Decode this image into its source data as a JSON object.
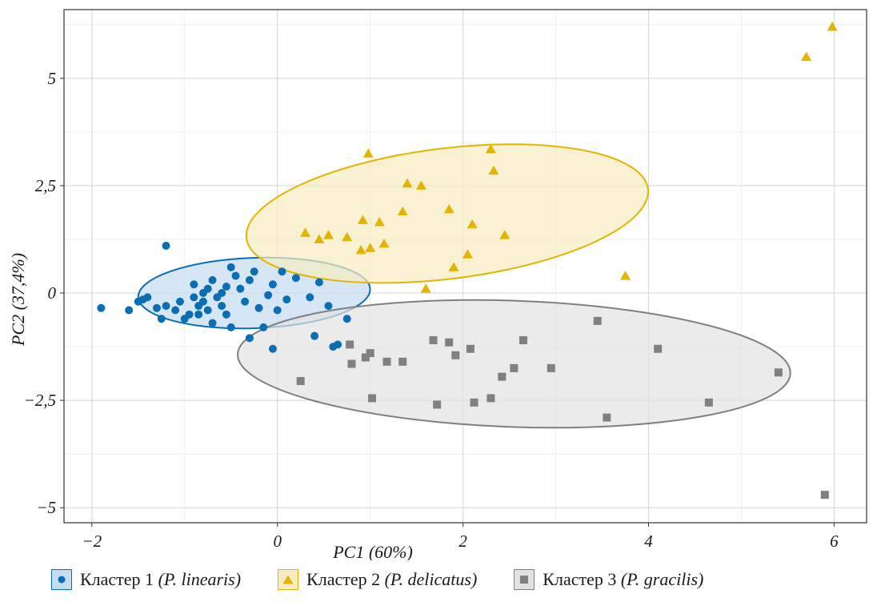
{
  "chart_data": {
    "type": "scatter",
    "xlabel": "PC1 (60%)",
    "ylabel": "PC2 (37,4%)",
    "xlim": [
      -2.3,
      6.35
    ],
    "ylim": [
      -5.35,
      6.6
    ],
    "x_ticks": [
      {
        "value": -2,
        "label": "−2"
      },
      {
        "value": 0,
        "label": "0"
      },
      {
        "value": 2,
        "label": "2"
      },
      {
        "value": 4,
        "label": "4"
      },
      {
        "value": 6,
        "label": "6"
      }
    ],
    "y_ticks": [
      {
        "value": -5,
        "label": "−5"
      },
      {
        "value": -2.5,
        "label": "−2,5"
      },
      {
        "value": 0,
        "label": "0"
      },
      {
        "value": 2.5,
        "label": "2,5"
      },
      {
        "value": 5,
        "label": "5"
      }
    ],
    "grid": true,
    "legend_position": "bottom",
    "series": [
      {
        "name": "Кластер 1",
        "name_italic": "(P. linearis)",
        "marker": "circle",
        "color": "#0a6eb4",
        "fill": "#c6dcef",
        "ellipse": {
          "cx": -0.25,
          "cy": 0.0,
          "rx": 1.25,
          "ry": 0.82,
          "angle_deg": 2
        },
        "points": [
          [
            -1.9,
            -0.35
          ],
          [
            -1.6,
            -0.4
          ],
          [
            -1.5,
            -0.2
          ],
          [
            -1.45,
            -0.15
          ],
          [
            -1.4,
            -0.1
          ],
          [
            -1.3,
            -0.35
          ],
          [
            -1.25,
            -0.6
          ],
          [
            -1.2,
            -0.3
          ],
          [
            -1.2,
            1.1
          ],
          [
            -1.1,
            -0.4
          ],
          [
            -1.05,
            -0.2
          ],
          [
            -1.0,
            -0.6
          ],
          [
            -0.95,
            -0.5
          ],
          [
            -0.9,
            0.2
          ],
          [
            -0.9,
            -0.1
          ],
          [
            -0.85,
            -0.3
          ],
          [
            -0.85,
            -0.5
          ],
          [
            -0.8,
            -0.2
          ],
          [
            -0.8,
            0.0
          ],
          [
            -0.75,
            0.1
          ],
          [
            -0.75,
            -0.4
          ],
          [
            -0.7,
            -0.7
          ],
          [
            -0.7,
            0.3
          ],
          [
            -0.65,
            -0.1
          ],
          [
            -0.6,
            -0.3
          ],
          [
            -0.6,
            0.0
          ],
          [
            -0.55,
            -0.5
          ],
          [
            -0.55,
            0.15
          ],
          [
            -0.5,
            -0.8
          ],
          [
            -0.5,
            0.6
          ],
          [
            -0.45,
            0.4
          ],
          [
            -0.4,
            0.1
          ],
          [
            -0.35,
            -0.2
          ],
          [
            -0.3,
            -1.05
          ],
          [
            -0.3,
            0.3
          ],
          [
            -0.25,
            0.5
          ],
          [
            -0.2,
            -0.35
          ],
          [
            -0.15,
            -0.8
          ],
          [
            -0.1,
            -0.05
          ],
          [
            -0.05,
            -1.3
          ],
          [
            -0.05,
            0.2
          ],
          [
            0.0,
            -0.4
          ],
          [
            0.05,
            0.5
          ],
          [
            0.1,
            -0.15
          ],
          [
            0.2,
            0.35
          ],
          [
            0.35,
            -0.1
          ],
          [
            0.4,
            -1.0
          ],
          [
            0.45,
            0.25
          ],
          [
            0.55,
            -0.3
          ],
          [
            0.6,
            -1.25
          ],
          [
            0.65,
            -1.2
          ],
          [
            0.75,
            -0.6
          ]
        ]
      },
      {
        "name": "Кластер 2",
        "name_italic": "(P. delicatus)",
        "marker": "triangle",
        "color": "#e3b400",
        "fill": "#f6ecbf",
        "ellipse": {
          "cx": 1.83,
          "cy": 1.85,
          "rx": 2.18,
          "ry": 1.52,
          "angle_deg": 7
        },
        "points": [
          [
            0.3,
            1.4
          ],
          [
            0.45,
            1.25
          ],
          [
            0.55,
            1.35
          ],
          [
            0.75,
            1.3
          ],
          [
            0.9,
            1.0
          ],
          [
            0.92,
            1.7
          ],
          [
            0.98,
            3.25
          ],
          [
            1.0,
            1.05
          ],
          [
            1.1,
            1.65
          ],
          [
            1.15,
            1.15
          ],
          [
            1.35,
            1.9
          ],
          [
            1.4,
            2.55
          ],
          [
            1.55,
            2.5
          ],
          [
            1.6,
            0.1
          ],
          [
            1.85,
            1.95
          ],
          [
            1.9,
            0.6
          ],
          [
            2.05,
            0.9
          ],
          [
            2.1,
            1.6
          ],
          [
            2.3,
            3.35
          ],
          [
            2.33,
            2.85
          ],
          [
            2.45,
            1.35
          ],
          [
            3.75,
            0.4
          ],
          [
            5.7,
            5.5
          ],
          [
            5.98,
            6.2
          ]
        ]
      },
      {
        "name": "Кластер 3",
        "name_italic": "(P. gracilis)",
        "marker": "square",
        "color": "#808080",
        "fill": "#e2e2e2",
        "ellipse": {
          "cx": 2.55,
          "cy": -1.65,
          "rx": 2.98,
          "ry": 1.47,
          "angle_deg": -2
        },
        "points": [
          [
            0.25,
            -2.05
          ],
          [
            0.78,
            -1.2
          ],
          [
            0.8,
            -1.65
          ],
          [
            0.95,
            -1.5
          ],
          [
            1.0,
            -1.4
          ],
          [
            1.02,
            -2.45
          ],
          [
            1.18,
            -1.6
          ],
          [
            1.35,
            -1.6
          ],
          [
            1.68,
            -1.1
          ],
          [
            1.72,
            -2.6
          ],
          [
            1.85,
            -1.15
          ],
          [
            1.92,
            -1.45
          ],
          [
            2.08,
            -1.3
          ],
          [
            2.12,
            -2.55
          ],
          [
            2.3,
            -2.45
          ],
          [
            2.42,
            -1.95
          ],
          [
            2.55,
            -1.75
          ],
          [
            2.65,
            -1.1
          ],
          [
            2.95,
            -1.75
          ],
          [
            3.45,
            -0.65
          ],
          [
            3.55,
            -2.9
          ],
          [
            4.1,
            -1.3
          ],
          [
            4.65,
            -2.55
          ],
          [
            5.4,
            -1.85
          ],
          [
            5.9,
            -4.7
          ]
        ]
      }
    ]
  }
}
